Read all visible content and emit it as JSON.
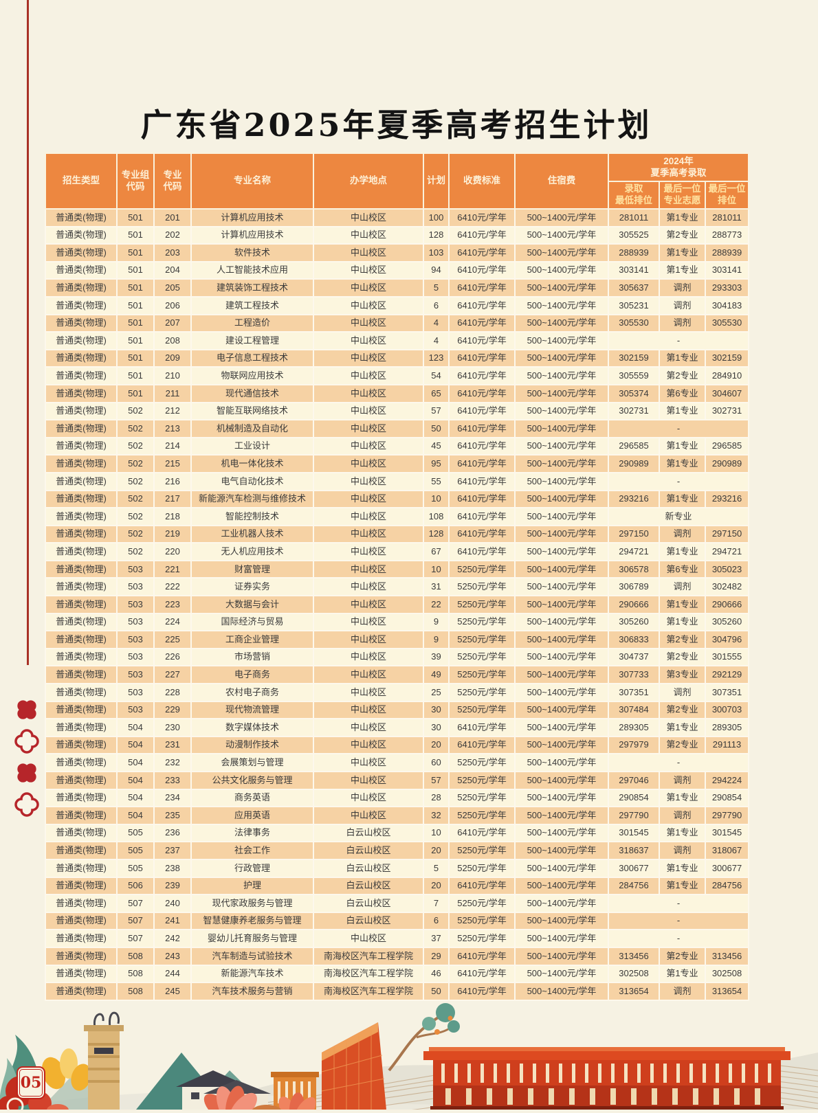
{
  "title": "广东省2025年夏季高考招生计划",
  "page": {
    "number": "05"
  },
  "colors": {
    "page_bg": "#f6f2e3",
    "header_orange": "#ed8740",
    "header_text": "#fdf1d8",
    "subheader_text": "#ffe3a1",
    "row_peach": "#f6d2a4",
    "row_cream": "#fcf6de",
    "accent_red": "#a93226",
    "badge_red": "#c0241c"
  },
  "table": {
    "headers": {
      "type": "招生类型",
      "group_code": "专业组\n代码",
      "major_code": "专业\n代码",
      "major_name": "专业名称",
      "location": "办学地点",
      "plan": "计划",
      "fee": "收费标准",
      "accommodation": "住宿费",
      "admission_2024": "2024年\n夏季高考录取",
      "rank_min": "录取\n最低排位",
      "last_pref": "最后一位\n专业志愿",
      "last_rank": "最后一位\n排位"
    },
    "rows": [
      [
        "普通类(物理)",
        "501",
        "201",
        "计算机应用技术",
        "中山校区",
        "100",
        "6410元/学年",
        "500~1400元/学年",
        "281011",
        "第1专业",
        "281011"
      ],
      [
        "普通类(物理)",
        "501",
        "202",
        "计算机应用技术",
        "中山校区",
        "128",
        "6410元/学年",
        "500~1400元/学年",
        "305525",
        "第2专业",
        "288773"
      ],
      [
        "普通类(物理)",
        "501",
        "203",
        "软件技术",
        "中山校区",
        "103",
        "6410元/学年",
        "500~1400元/学年",
        "288939",
        "第1专业",
        "288939"
      ],
      [
        "普通类(物理)",
        "501",
        "204",
        "人工智能技术应用",
        "中山校区",
        "94",
        "6410元/学年",
        "500~1400元/学年",
        "303141",
        "第1专业",
        "303141"
      ],
      [
        "普通类(物理)",
        "501",
        "205",
        "建筑装饰工程技术",
        "中山校区",
        "5",
        "6410元/学年",
        "500~1400元/学年",
        "305637",
        "调剂",
        "293303"
      ],
      [
        "普通类(物理)",
        "501",
        "206",
        "建筑工程技术",
        "中山校区",
        "6",
        "6410元/学年",
        "500~1400元/学年",
        "305231",
        "调剂",
        "304183"
      ],
      [
        "普通类(物理)",
        "501",
        "207",
        "工程造价",
        "中山校区",
        "4",
        "6410元/学年",
        "500~1400元/学年",
        "305530",
        "调剂",
        "305530"
      ],
      [
        "普通类(物理)",
        "501",
        "208",
        "建设工程管理",
        "中山校区",
        "4",
        "6410元/学年",
        "500~1400元/学年",
        "",
        "-",
        ""
      ],
      [
        "普通类(物理)",
        "501",
        "209",
        "电子信息工程技术",
        "中山校区",
        "123",
        "6410元/学年",
        "500~1400元/学年",
        "302159",
        "第1专业",
        "302159"
      ],
      [
        "普通类(物理)",
        "501",
        "210",
        "物联网应用技术",
        "中山校区",
        "54",
        "6410元/学年",
        "500~1400元/学年",
        "305559",
        "第2专业",
        "284910"
      ],
      [
        "普通类(物理)",
        "501",
        "211",
        "现代通信技术",
        "中山校区",
        "65",
        "6410元/学年",
        "500~1400元/学年",
        "305374",
        "第6专业",
        "304607"
      ],
      [
        "普通类(物理)",
        "502",
        "212",
        "智能互联网络技术",
        "中山校区",
        "57",
        "6410元/学年",
        "500~1400元/学年",
        "302731",
        "第1专业",
        "302731"
      ],
      [
        "普通类(物理)",
        "502",
        "213",
        "机械制造及自动化",
        "中山校区",
        "50",
        "6410元/学年",
        "500~1400元/学年",
        "",
        "-",
        ""
      ],
      [
        "普通类(物理)",
        "502",
        "214",
        "工业设计",
        "中山校区",
        "45",
        "6410元/学年",
        "500~1400元/学年",
        "296585",
        "第1专业",
        "296585"
      ],
      [
        "普通类(物理)",
        "502",
        "215",
        "机电一体化技术",
        "中山校区",
        "95",
        "6410元/学年",
        "500~1400元/学年",
        "290989",
        "第1专业",
        "290989"
      ],
      [
        "普通类(物理)",
        "502",
        "216",
        "电气自动化技术",
        "中山校区",
        "55",
        "6410元/学年",
        "500~1400元/学年",
        "",
        "-",
        ""
      ],
      [
        "普通类(物理)",
        "502",
        "217",
        "新能源汽车检测与维修技术",
        "中山校区",
        "10",
        "6410元/学年",
        "500~1400元/学年",
        "293216",
        "第1专业",
        "293216"
      ],
      [
        "普通类(物理)",
        "502",
        "218",
        "智能控制技术",
        "中山校区",
        "108",
        "6410元/学年",
        "500~1400元/学年",
        "",
        "新专业",
        ""
      ],
      [
        "普通类(物理)",
        "502",
        "219",
        "工业机器人技术",
        "中山校区",
        "128",
        "6410元/学年",
        "500~1400元/学年",
        "297150",
        "调剂",
        "297150"
      ],
      [
        "普通类(物理)",
        "502",
        "220",
        "无人机应用技术",
        "中山校区",
        "67",
        "6410元/学年",
        "500~1400元/学年",
        "294721",
        "第1专业",
        "294721"
      ],
      [
        "普通类(物理)",
        "503",
        "221",
        "财富管理",
        "中山校区",
        "10",
        "5250元/学年",
        "500~1400元/学年",
        "306578",
        "第6专业",
        "305023"
      ],
      [
        "普通类(物理)",
        "503",
        "222",
        "证券实务",
        "中山校区",
        "31",
        "5250元/学年",
        "500~1400元/学年",
        "306789",
        "调剂",
        "302482"
      ],
      [
        "普通类(物理)",
        "503",
        "223",
        "大数据与会计",
        "中山校区",
        "22",
        "5250元/学年",
        "500~1400元/学年",
        "290666",
        "第1专业",
        "290666"
      ],
      [
        "普通类(物理)",
        "503",
        "224",
        "国际经济与贸易",
        "中山校区",
        "9",
        "5250元/学年",
        "500~1400元/学年",
        "305260",
        "第1专业",
        "305260"
      ],
      [
        "普通类(物理)",
        "503",
        "225",
        "工商企业管理",
        "中山校区",
        "9",
        "5250元/学年",
        "500~1400元/学年",
        "306833",
        "第2专业",
        "304796"
      ],
      [
        "普通类(物理)",
        "503",
        "226",
        "市场营销",
        "中山校区",
        "39",
        "5250元/学年",
        "500~1400元/学年",
        "304737",
        "第2专业",
        "301555"
      ],
      [
        "普通类(物理)",
        "503",
        "227",
        "电子商务",
        "中山校区",
        "49",
        "5250元/学年",
        "500~1400元/学年",
        "307733",
        "第3专业",
        "292129"
      ],
      [
        "普通类(物理)",
        "503",
        "228",
        "农村电子商务",
        "中山校区",
        "25",
        "5250元/学年",
        "500~1400元/学年",
        "307351",
        "调剂",
        "307351"
      ],
      [
        "普通类(物理)",
        "503",
        "229",
        "现代物流管理",
        "中山校区",
        "30",
        "5250元/学年",
        "500~1400元/学年",
        "307484",
        "第2专业",
        "300703"
      ],
      [
        "普通类(物理)",
        "504",
        "230",
        "数字媒体技术",
        "中山校区",
        "30",
        "6410元/学年",
        "500~1400元/学年",
        "289305",
        "第1专业",
        "289305"
      ],
      [
        "普通类(物理)",
        "504",
        "231",
        "动漫制作技术",
        "中山校区",
        "20",
        "6410元/学年",
        "500~1400元/学年",
        "297979",
        "第2专业",
        "291113"
      ],
      [
        "普通类(物理)",
        "504",
        "232",
        "会展策划与管理",
        "中山校区",
        "60",
        "5250元/学年",
        "500~1400元/学年",
        "",
        "-",
        ""
      ],
      [
        "普通类(物理)",
        "504",
        "233",
        "公共文化服务与管理",
        "中山校区",
        "57",
        "5250元/学年",
        "500~1400元/学年",
        "297046",
        "调剂",
        "294224"
      ],
      [
        "普通类(物理)",
        "504",
        "234",
        "商务英语",
        "中山校区",
        "28",
        "5250元/学年",
        "500~1400元/学年",
        "290854",
        "第1专业",
        "290854"
      ],
      [
        "普通类(物理)",
        "504",
        "235",
        "应用英语",
        "中山校区",
        "32",
        "5250元/学年",
        "500~1400元/学年",
        "297790",
        "调剂",
        "297790"
      ],
      [
        "普通类(物理)",
        "505",
        "236",
        "法律事务",
        "白云山校区",
        "10",
        "6410元/学年",
        "500~1400元/学年",
        "301545",
        "第1专业",
        "301545"
      ],
      [
        "普通类(物理)",
        "505",
        "237",
        "社会工作",
        "白云山校区",
        "20",
        "5250元/学年",
        "500~1400元/学年",
        "318637",
        "调剂",
        "318067"
      ],
      [
        "普通类(物理)",
        "505",
        "238",
        "行政管理",
        "白云山校区",
        "5",
        "5250元/学年",
        "500~1400元/学年",
        "300677",
        "第1专业",
        "300677"
      ],
      [
        "普通类(物理)",
        "506",
        "239",
        "护理",
        "白云山校区",
        "20",
        "6410元/学年",
        "500~1400元/学年",
        "284756",
        "第1专业",
        "284756"
      ],
      [
        "普通类(物理)",
        "507",
        "240",
        "现代家政服务与管理",
        "白云山校区",
        "7",
        "5250元/学年",
        "500~1400元/学年",
        "",
        "-",
        ""
      ],
      [
        "普通类(物理)",
        "507",
        "241",
        "智慧健康养老服务与管理",
        "白云山校区",
        "6",
        "5250元/学年",
        "500~1400元/学年",
        "",
        "-",
        ""
      ],
      [
        "普通类(物理)",
        "507",
        "242",
        "婴幼儿托育服务与管理",
        "中山校区",
        "37",
        "5250元/学年",
        "500~1400元/学年",
        "",
        "-",
        ""
      ],
      [
        "普通类(物理)",
        "508",
        "243",
        "汽车制造与试验技术",
        "南海校区汽车工程学院",
        "29",
        "6410元/学年",
        "500~1400元/学年",
        "313456",
        "第2专业",
        "313456"
      ],
      [
        "普通类(物理)",
        "508",
        "244",
        "新能源汽车技术",
        "南海校区汽车工程学院",
        "46",
        "6410元/学年",
        "500~1400元/学年",
        "302508",
        "第1专业",
        "302508"
      ],
      [
        "普通类(物理)",
        "508",
        "245",
        "汽车技术服务与营销",
        "南海校区汽车工程学院",
        "50",
        "6410元/学年",
        "500~1400元/学年",
        "313654",
        "调剂",
        "313654"
      ]
    ]
  }
}
